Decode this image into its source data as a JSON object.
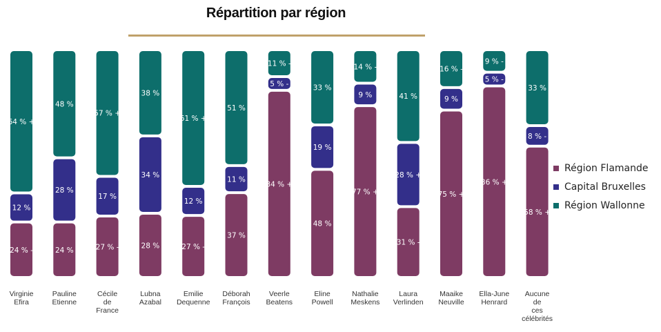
{
  "chart_data": {
    "type": "bar",
    "stacked": true,
    "title": "Répartition par région",
    "categories": [
      [
        "Virginie",
        "Efira"
      ],
      [
        "Pauline",
        "Etienne"
      ],
      [
        "Cécile",
        "de",
        "France"
      ],
      [
        "Lubna",
        "Azabal"
      ],
      [
        "Emilie",
        "Dequenne"
      ],
      [
        "Déborah",
        "François"
      ],
      [
        "Veerle",
        "Beatens"
      ],
      [
        "Eline",
        "Powell"
      ],
      [
        "Nathalie",
        "Meskens"
      ],
      [
        "Laura",
        "Verlinden"
      ],
      [
        "Maaike",
        "Neuville"
      ],
      [
        "Ella-June",
        "Henrard"
      ],
      [
        "Aucune",
        "de",
        "ces",
        "célébrités"
      ]
    ],
    "series": [
      {
        "name": "Région Flamande",
        "color": "#7e3b63",
        "values": [
          24,
          24,
          27,
          28,
          27,
          37,
          84,
          48,
          77,
          31,
          75,
          86,
          58
        ],
        "labels": [
          "24 % -",
          "24 %",
          "27 % -",
          "28 %",
          "27 % -",
          "37 %",
          "84 % +",
          "48 %",
          "77 % +",
          "31 % -",
          "75 % +",
          "86 % +",
          "58 % +"
        ]
      },
      {
        "name": "Capital Bruxelles",
        "color": "#332f8a",
        "values": [
          12,
          28,
          17,
          34,
          12,
          11,
          5,
          19,
          9,
          28,
          9,
          5,
          8
        ],
        "labels": [
          "12 %",
          "28 %",
          "17 %",
          "34 %",
          "12 %",
          "11 %",
          "5 % -",
          "19 %",
          "9 %",
          "28 % +",
          "9 %",
          "5 % -",
          "8 % -"
        ]
      },
      {
        "name": "Région Wallonne",
        "color": "#0d6e6b",
        "values": [
          64,
          48,
          57,
          38,
          61,
          51,
          11,
          33,
          14,
          41,
          16,
          9,
          33
        ],
        "labels": [
          "64 % +",
          "48 %",
          "57 % +",
          "38 %",
          "61 % +",
          "51 %",
          "11 % -",
          "33 %",
          "14 % -",
          "41 %",
          "16 % -",
          "9 % -",
          "33 %"
        ]
      }
    ],
    "ylim": [
      0,
      100
    ],
    "legend_position": "right",
    "grid": false
  }
}
